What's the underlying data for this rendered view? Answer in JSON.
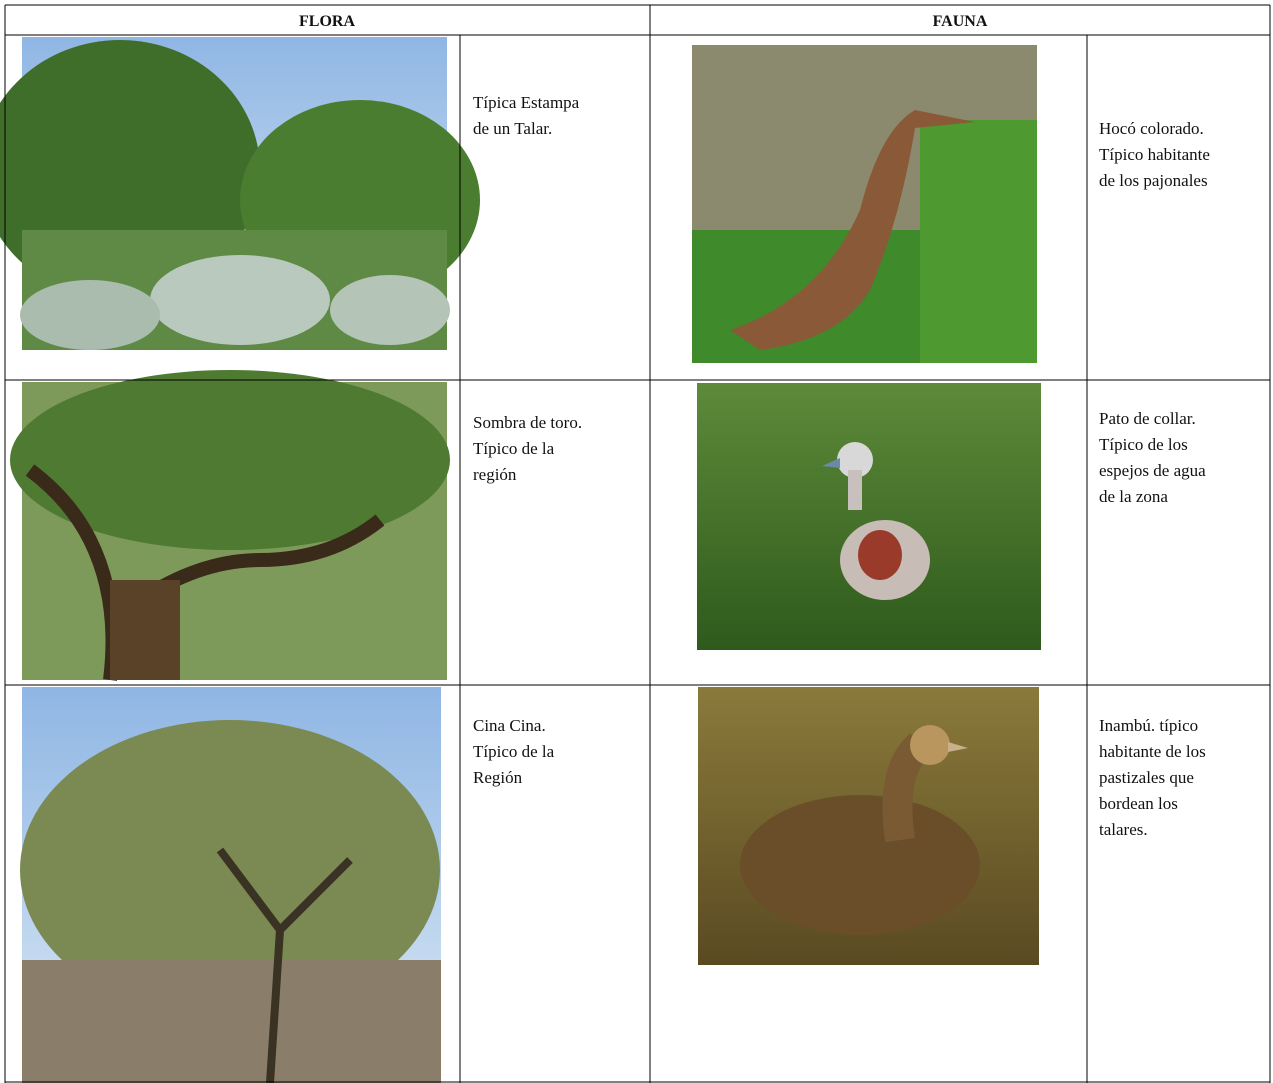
{
  "header": {
    "flora": "FLORA",
    "fauna": "FAUNA"
  },
  "rows": [
    {
      "flora": {
        "caption": [
          "Típica Estampa",
          "de un Talar."
        ]
      },
      "fauna": {
        "caption": [
          "Hocó colorado.",
          "Típico  habitante",
          "de los pajonales"
        ]
      }
    },
    {
      "flora": {
        "caption": [
          "Sombra de toro.",
          "Típico de la",
          "región"
        ]
      },
      "fauna": {
        "caption": [
          "Pato de collar.",
          "Típico de los",
          "espejos de agua",
          "de la zona"
        ]
      }
    },
    {
      "flora": {
        "caption": [
          "Cina Cina.",
          "Típico de la",
          "Región"
        ]
      },
      "fauna": {
        "caption": [
          "Inambú. típico",
          "habitante de los",
          "pastizales que",
          "bordean los",
          "talares."
        ]
      }
    }
  ]
}
